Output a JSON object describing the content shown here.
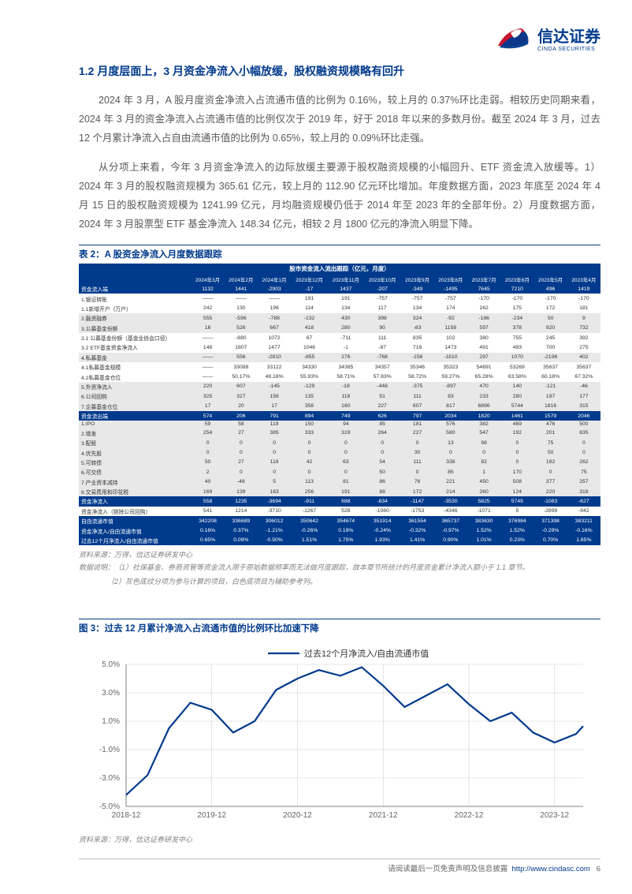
{
  "logo": {
    "cn": "信达证券",
    "en": "CINDA SECURITIES"
  },
  "section_title": "1.2 月度层面上，3 月资金净流入小幅放缓，股权融资规模略有回升",
  "para1": "2024 年 3 月，A 股月度资金净流入占流通市值的比例为 0.16%，较上月的 0.37%环比走弱。相较历史同期来看，2024 年 3 月的资金净流入占流通市值的比例仅次于 2019 年，好于 2018 年以来的多数月份。截至 2024 年 3 月，过去 12 个月累计净流入占自由流通市值的比例为 0.65%，较上月的 0.09%环比走强。",
  "para2": "从分项上来看，今年 3 月资金净流入的边际放缓主要源于股权融资规模的小幅回升、ETF 资金流入放缓等。1）2024 年 3 月的股权融资规模为 365.61 亿元，较上月的 112.90 亿元环比增加。年度数据方面，2023 年底至 2024 年 4 月 15 日的股权融资规模为 1241.99 亿元，月均融资规模仍低于 2014 年至 2023 年的全部年份。2）月度数据方面，2024 年 3 月股票型 ETF 基金净流入 148.34 亿元，相较 2 月 1800 亿元的净流入明显下降。",
  "table": {
    "caption": "表 2：A 股资金净流入月度数据跟踪",
    "header_title": "股市资金流入流出跟踪（亿元，月度）",
    "periods": [
      "2024年3月",
      "2024年2月",
      "2024年1月",
      "2023年12月",
      "2023年11月",
      "2023年10月",
      "2023年9月",
      "2023年8月",
      "2023年7月",
      "2023年6月",
      "2023年5月",
      "2023年4月"
    ],
    "rows": [
      {
        "label": "资金流入端",
        "cls": "blue-row",
        "v": [
          "1132",
          "1441",
          "-2903",
          "-17",
          "1437",
          "-207",
          "-349",
          "-1495",
          "7645",
          "7210",
          "496",
          "1419"
        ]
      },
      {
        "label": "1.银证转账",
        "cls": "white-row",
        "v": [
          "——",
          "——",
          "——",
          "191",
          "191",
          "-757",
          "-757",
          "-757",
          "-170",
          "-170",
          "-170",
          "-170"
        ]
      },
      {
        "label": "1.1新增开户（万户）",
        "cls": "white-row",
        "v": [
          "242",
          "130",
          "196",
          "114",
          "134",
          "117",
          "134",
          "174",
          "162",
          "175",
          "172",
          "181"
        ]
      },
      {
        "label": "2.融资融券",
        "cls": "grey-row",
        "v": [
          "555",
          "-596",
          "-788",
          "-132",
          "430",
          "398",
          "324",
          "-92",
          "-186",
          "-234",
          "50",
          "9"
        ]
      },
      {
        "label": "3.公募基金份额",
        "cls": "grey-row",
        "v": [
          "16",
          "526",
          "667",
          "418",
          "280",
          "90",
          "-83",
          "1158",
          "597",
          "378",
          "920",
          "732"
        ]
      },
      {
        "label": "3.1 公募基金份额（基金业协会口径）",
        "cls": "white-row",
        "v": [
          "——",
          "-880",
          "1072",
          "67",
          "-711",
          "111",
          "835",
          "102",
          "380",
          "755",
          "245",
          "392"
        ]
      },
      {
        "label": "3.2 ETF基金资金净流入",
        "cls": "white-row",
        "v": [
          "148",
          "1807",
          "1477",
          "1046",
          "-1",
          "-87",
          "716",
          "1473",
          "491",
          "493",
          "700",
          "275"
        ]
      },
      {
        "label": "4.私募基金",
        "cls": "grey-row",
        "v": [
          "——",
          "556",
          "-2810",
          "-855",
          "276",
          "-768",
          "-156",
          "-1810",
          "297",
          "1070",
          "-2196",
          "402"
        ]
      },
      {
        "label": "4.1私募基金规模",
        "cls": "white-row",
        "v": [
          "——",
          "33088",
          "33122",
          "34330",
          "34385",
          "34357",
          "35346",
          "35323",
          "54691",
          "53269",
          "35637",
          "35637"
        ]
      },
      {
        "label": "4.2私募基金仓位",
        "cls": "white-row",
        "v": [
          "——",
          "50.17%",
          "48.18%",
          "55.93%",
          "58.71%",
          "57.83%",
          "58.72%",
          "59.27%",
          "65.28%",
          "63.58%",
          "60.18%",
          "67.32%"
        ]
      },
      {
        "label": "5.外资净流入",
        "cls": "grey-row",
        "v": [
          "220",
          "607",
          "-145",
          "-129",
          "-18",
          "-448",
          "-375",
          "-897",
          "470",
          "140",
          "-121",
          "-46"
        ]
      },
      {
        "label": "6.公司回购",
        "cls": "grey-row",
        "v": [
          "325",
          "327",
          "156",
          "135",
          "118",
          "51",
          "111",
          "83",
          "233",
          "280",
          "197",
          "177"
        ]
      },
      {
        "label": "7.企募基金仓位",
        "cls": "grey-row",
        "v": [
          "17",
          "20",
          "17",
          "356",
          "160",
          "227",
          "607",
          "817",
          "6896",
          "5744",
          "1816",
          "315"
        ]
      },
      {
        "label": "资金流出端",
        "cls": "blue-row",
        "v": [
          "574",
          "206",
          "791",
          "894",
          "749",
          "626",
          "797",
          "2034",
          "1820",
          "1461",
          "1579",
          "2046"
        ]
      },
      {
        "label": "1.IPO",
        "cls": "grey-row",
        "v": [
          "59",
          "58",
          "119",
          "150",
          "94",
          "85",
          "181",
          "576",
          "382",
          "469",
          "476",
          "500"
        ]
      },
      {
        "label": "2.增发",
        "cls": "grey-row",
        "v": [
          "254",
          "27",
          "385",
          "333",
          "319",
          "264",
          "227",
          "580",
          "547",
          "192",
          "201",
          "635"
        ]
      },
      {
        "label": "3.配股",
        "cls": "grey-row",
        "v": [
          "0",
          "0",
          "0",
          "0",
          "0",
          "0",
          "0",
          "13",
          "98",
          "0",
          "75",
          "0"
        ]
      },
      {
        "label": "4.优先股",
        "cls": "grey-row",
        "v": [
          "0",
          "0",
          "0",
          "0",
          "0",
          "0",
          "30",
          "0",
          "0",
          "0",
          "50",
          "0"
        ]
      },
      {
        "label": "5.可转债",
        "cls": "grey-row",
        "v": [
          "50",
          "27",
          "118",
          "42",
          "63",
          "54",
          "111",
          "338",
          "82",
          "0",
          "182",
          "262"
        ]
      },
      {
        "label": "6.可交债",
        "cls": "grey-row",
        "v": [
          "2",
          "0",
          "0",
          "0",
          "0",
          "50",
          "0",
          "85",
          "1",
          "170",
          "0",
          "75"
        ]
      },
      {
        "label": "7.产业资本减持",
        "cls": "grey-row",
        "v": [
          "40",
          "-46",
          "5",
          "113",
          "81",
          "86",
          "76",
          "221",
          "450",
          "508",
          "377",
          "257"
        ]
      },
      {
        "label": "8.交易费用和印花税",
        "cls": "grey-row",
        "v": [
          "169",
          "139",
          "163",
          "256",
          "191",
          "88",
          "172",
          "214",
          "260",
          "124",
          "220",
          "318"
        ]
      },
      {
        "label": "资金净流入",
        "cls": "blue-row",
        "v": [
          "558",
          "1235",
          "-3694",
          "-911",
          "688",
          "-834",
          "-1147",
          "-3530",
          "5825",
          "5749",
          "-1083",
          "-627"
        ]
      },
      {
        "label": "资金净流入（剔除公司回购）",
        "cls": "white-row",
        "v": [
          "541",
          "1214",
          "-3710",
          "-1267",
          "528",
          "-1060",
          "-1753",
          "-4346",
          "-1071",
          "5",
          "-2899",
          "-942"
        ]
      },
      {
        "label": "自由流通市值",
        "cls": "blue-row",
        "v": [
          "342208",
          "336689",
          "306012",
          "350642",
          "354674",
          "351914",
          "361554",
          "365737",
          "383630",
          "376984",
          "371398",
          "383211"
        ]
      },
      {
        "label": "资金净流入/自由流通市值",
        "cls": "blue-row",
        "v": [
          "0.16%",
          "0.37%",
          "-1.21%",
          "-0.26%",
          "0.19%",
          "-0.24%",
          "-0.32%",
          "-0.97%",
          "1.52%",
          "1.52%",
          "-0.29%",
          "-0.16%"
        ]
      },
      {
        "label": "过去12个月净流入/自由流通市值",
        "cls": "blue-row",
        "v": [
          "0.65%",
          "0.09%",
          "-0.50%",
          "1.51%",
          "1.75%",
          "1.93%",
          "1.41%",
          "0.90%",
          "1.01%",
          "0.23%",
          "0.70%",
          "1.65%"
        ]
      }
    ],
    "source": "资料来源：万得，信达证券研发中心",
    "note1": "数据说明：（1）社保基金、券商资管等资金流入限于原始数据频率而无法做月度跟踪，故本章节所统计的月度资金累计净流入额小于 1.1 章节。",
    "note2": "（2）灰色底纹分项为参与计算的项目，白色底项目为辅助参考列。"
  },
  "chart": {
    "caption": "图 3：过去 12 月累计净流入占流通市值的比例环比加速下降",
    "legend": "过去12个月净流入/自由流通市值",
    "line_color": "#003a8c",
    "grid_color": "#d0d0d0",
    "bg": "#ffffff",
    "ylim": [
      -5,
      5
    ],
    "ytick_step": 2,
    "yticks": [
      "5.0%",
      "3.0%",
      "1.0%",
      "-1.0%",
      "-3.0%",
      "-5.0%"
    ],
    "xticks": [
      "2018-12",
      "2019-12",
      "2020-12",
      "2021-12",
      "2022-12",
      "2023-12"
    ],
    "points": [
      {
        "x": 0,
        "y": -4.2
      },
      {
        "x": 3,
        "y": -2.8
      },
      {
        "x": 6,
        "y": 0.5
      },
      {
        "x": 9,
        "y": 2.3
      },
      {
        "x": 12,
        "y": 1.8
      },
      {
        "x": 15,
        "y": 0.2
      },
      {
        "x": 18,
        "y": 1.0
      },
      {
        "x": 21,
        "y": 3.2
      },
      {
        "x": 24,
        "y": 4.0
      },
      {
        "x": 27,
        "y": 4.6
      },
      {
        "x": 30,
        "y": 4.2
      },
      {
        "x": 33,
        "y": 4.8
      },
      {
        "x": 36,
        "y": 3.5
      },
      {
        "x": 39,
        "y": 2.0
      },
      {
        "x": 42,
        "y": 2.8
      },
      {
        "x": 45,
        "y": 3.6
      },
      {
        "x": 48,
        "y": 2.2
      },
      {
        "x": 51,
        "y": 1.0
      },
      {
        "x": 54,
        "y": 1.6
      },
      {
        "x": 57,
        "y": 0.2
      },
      {
        "x": 60,
        "y": -0.5
      },
      {
        "x": 63,
        "y": 0.1
      },
      {
        "x": 64,
        "y": 0.65
      }
    ],
    "source": "资料来源：万得，信达证券研发中心"
  },
  "footer": {
    "text": "请阅读最后一页免责声明及信息披露",
    "url": "http://www.cindasc.com",
    "page": "6"
  }
}
